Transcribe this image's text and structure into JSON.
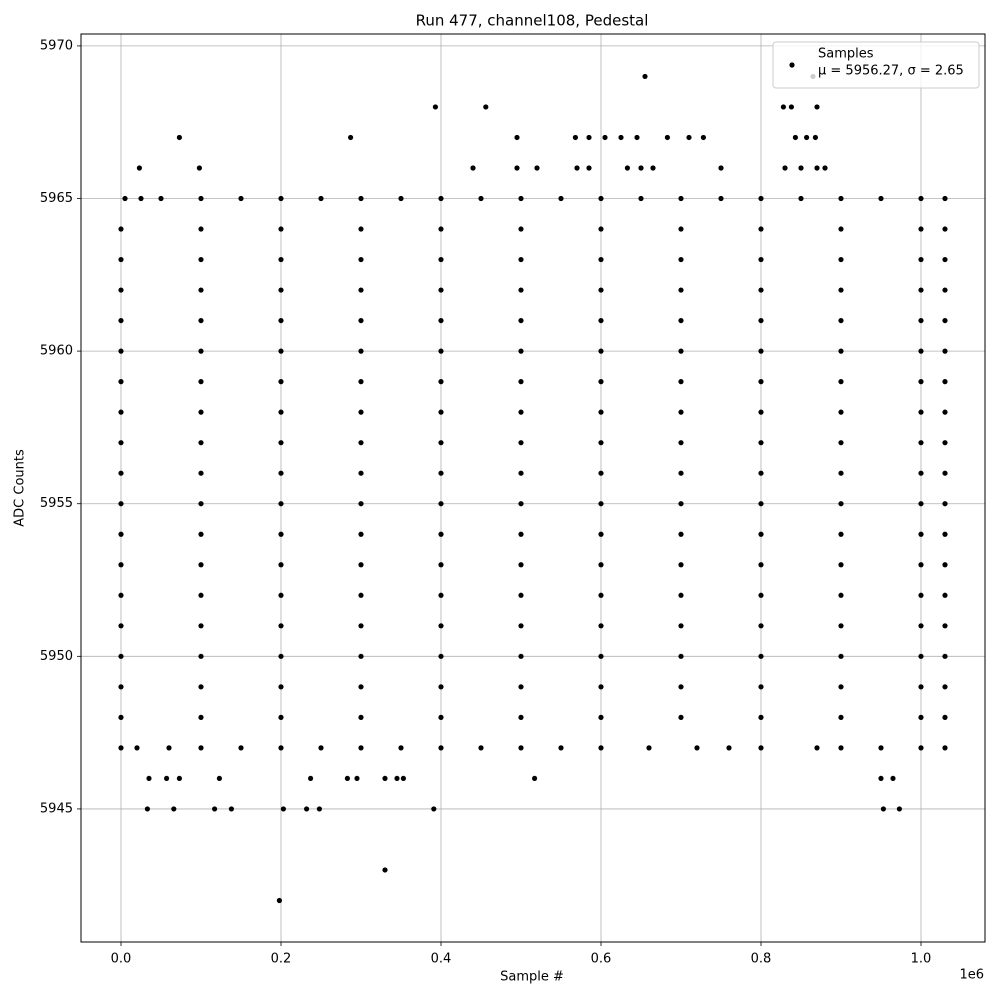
{
  "chart_data": {
    "type": "scatter",
    "title": "Run 477, channel108, Pedestal",
    "x_label": "Sample #",
    "y_label": "ADC Counts",
    "x_offset_label": "1e6",
    "xlim": [
      -50000,
      1080000
    ],
    "ylim": [
      5940.64,
      5970.39
    ],
    "xticks": [
      {
        "value": 0,
        "label": "0.0"
      },
      {
        "value": 200000,
        "label": "0.2"
      },
      {
        "value": 400000,
        "label": "0.4"
      },
      {
        "value": 600000,
        "label": "0.6"
      },
      {
        "value": 800000,
        "label": "0.8"
      },
      {
        "value": 1000000,
        "label": "1.0"
      }
    ],
    "yticks": [
      5945,
      5950,
      5955,
      5960,
      5965,
      5970
    ],
    "grid": true,
    "legend": "upper right",
    "legend_note": "μ = 5956.27, σ = 2.65",
    "series": [
      {
        "name": "Samples",
        "color": "#000000",
        "x": [
          0,
          100000,
          200000,
          300000,
          400000,
          500000,
          600000,
          700000,
          800000,
          900000,
          1000000,
          1030000,
          0,
          100000,
          200000,
          300000,
          400000,
          500000,
          600000,
          700000,
          800000,
          900000,
          1000000,
          1030000,
          0,
          100000,
          200000,
          300000,
          400000,
          500000,
          600000,
          700000,
          800000,
          900000,
          1000000,
          1030000,
          0,
          100000,
          200000,
          300000,
          400000,
          500000,
          600000,
          700000,
          800000,
          900000,
          1000000,
          1030000,
          0,
          100000,
          200000,
          300000,
          400000,
          500000,
          600000,
          700000,
          800000,
          900000,
          1000000,
          1030000,
          0,
          100000,
          200000,
          300000,
          400000,
          500000,
          600000,
          700000,
          800000,
          900000,
          1000000,
          1030000,
          0,
          100000,
          200000,
          300000,
          400000,
          500000,
          600000,
          700000,
          800000,
          900000,
          1000000,
          1030000,
          0,
          100000,
          200000,
          300000,
          400000,
          500000,
          600000,
          700000,
          800000,
          900000,
          1000000,
          1030000,
          0,
          100000,
          200000,
          300000,
          400000,
          500000,
          600000,
          700000,
          800000,
          900000,
          1000000,
          1030000,
          0,
          100000,
          200000,
          300000,
          400000,
          500000,
          600000,
          700000,
          800000,
          900000,
          1000000,
          1030000,
          0,
          100000,
          200000,
          300000,
          400000,
          500000,
          600000,
          700000,
          800000,
          900000,
          1000000,
          1030000,
          0,
          100000,
          200000,
          300000,
          400000,
          500000,
          600000,
          700000,
          800000,
          900000,
          1000000,
          1030000,
          0,
          100000,
          200000,
          300000,
          400000,
          500000,
          600000,
          700000,
          800000,
          900000,
          1000000,
          1030000,
          0,
          100000,
          200000,
          300000,
          400000,
          500000,
          600000,
          700000,
          800000,
          900000,
          1000000,
          1030000,
          0,
          100000,
          200000,
          300000,
          400000,
          500000,
          600000,
          700000,
          800000,
          900000,
          1000000,
          1030000,
          0,
          100000,
          200000,
          300000,
          400000,
          500000,
          600000,
          700000,
          800000,
          900000,
          1000000,
          1030000,
          0,
          100000,
          200000,
          300000,
          400000,
          500000,
          600000,
          700000,
          800000,
          900000,
          1000000,
          1030000,
          0,
          20000,
          60000,
          100000,
          150000,
          200000,
          250000,
          300000,
          350000,
          400000,
          450000,
          500000,
          550000,
          600000,
          660000,
          720000,
          760000,
          800000,
          870000,
          900000,
          950000,
          1000000,
          1030000,
          5000,
          25000,
          50000,
          100000,
          150000,
          200000,
          250000,
          300000,
          350000,
          400000,
          450000,
          500000,
          550000,
          600000,
          650000,
          700000,
          750000,
          800000,
          850000,
          900000,
          950000,
          1000000,
          1030000,
          23000,
          98000,
          440000,
          495000,
          520000,
          570000,
          585000,
          633000,
          650000,
          665000,
          750000,
          830000,
          850000,
          870000,
          880000,
          73000,
          287000,
          495000,
          568000,
          585000,
          605000,
          625000,
          645000,
          683000,
          710000,
          728000,
          843000,
          857000,
          868000,
          393000,
          456000,
          828000,
          838000,
          870000,
          655000,
          865000,
          35000,
          57000,
          73000,
          123000,
          237000,
          283000,
          295000,
          330000,
          345000,
          353000,
          517000,
          950000,
          965000,
          33000,
          66000,
          117000,
          138000,
          203000,
          232000,
          248000,
          391000,
          953000,
          973000,
          330000,
          198000
        ],
        "values": [
          5964,
          5964,
          5964,
          5964,
          5964,
          5964,
          5964,
          5964,
          5964,
          5964,
          5964,
          5964,
          5963,
          5963,
          5963,
          5963,
          5963,
          5963,
          5963,
          5963,
          5963,
          5963,
          5963,
          5963,
          5962,
          5962,
          5962,
          5962,
          5962,
          5962,
          5962,
          5962,
          5962,
          5962,
          5962,
          5962,
          5961,
          5961,
          5961,
          5961,
          5961,
          5961,
          5961,
          5961,
          5961,
          5961,
          5961,
          5961,
          5960,
          5960,
          5960,
          5960,
          5960,
          5960,
          5960,
          5960,
          5960,
          5960,
          5960,
          5960,
          5959,
          5959,
          5959,
          5959,
          5959,
          5959,
          5959,
          5959,
          5959,
          5959,
          5959,
          5959,
          5958,
          5958,
          5958,
          5958,
          5958,
          5958,
          5958,
          5958,
          5958,
          5958,
          5958,
          5958,
          5957,
          5957,
          5957,
          5957,
          5957,
          5957,
          5957,
          5957,
          5957,
          5957,
          5957,
          5957,
          5956,
          5956,
          5956,
          5956,
          5956,
          5956,
          5956,
          5956,
          5956,
          5956,
          5956,
          5956,
          5955,
          5955,
          5955,
          5955,
          5955,
          5955,
          5955,
          5955,
          5955,
          5955,
          5955,
          5955,
          5954,
          5954,
          5954,
          5954,
          5954,
          5954,
          5954,
          5954,
          5954,
          5954,
          5954,
          5954,
          5953,
          5953,
          5953,
          5953,
          5953,
          5953,
          5953,
          5953,
          5953,
          5953,
          5953,
          5953,
          5952,
          5952,
          5952,
          5952,
          5952,
          5952,
          5952,
          5952,
          5952,
          5952,
          5952,
          5952,
          5951,
          5951,
          5951,
          5951,
          5951,
          5951,
          5951,
          5951,
          5951,
          5951,
          5951,
          5951,
          5950,
          5950,
          5950,
          5950,
          5950,
          5950,
          5950,
          5950,
          5950,
          5950,
          5950,
          5950,
          5949,
          5949,
          5949,
          5949,
          5949,
          5949,
          5949,
          5949,
          5949,
          5949,
          5949,
          5949,
          5948,
          5948,
          5948,
          5948,
          5948,
          5948,
          5948,
          5948,
          5948,
          5948,
          5948,
          5948,
          5947,
          5947,
          5947,
          5947,
          5947,
          5947,
          5947,
          5947,
          5947,
          5947,
          5947,
          5947,
          5947,
          5947,
          5947,
          5947,
          5947,
          5947,
          5947,
          5947,
          5947,
          5947,
          5947,
          5965,
          5965,
          5965,
          5965,
          5965,
          5965,
          5965,
          5965,
          5965,
          5965,
          5965,
          5965,
          5965,
          5965,
          5965,
          5965,
          5965,
          5965,
          5965,
          5965,
          5965,
          5965,
          5965,
          5966,
          5966,
          5966,
          5966,
          5966,
          5966,
          5966,
          5966,
          5966,
          5966,
          5966,
          5966,
          5966,
          5966,
          5966,
          5967,
          5967,
          5967,
          5967,
          5967,
          5967,
          5967,
          5967,
          5967,
          5967,
          5967,
          5967,
          5967,
          5967,
          5968,
          5968,
          5968,
          5968,
          5968,
          5969,
          5969,
          5946,
          5946,
          5946,
          5946,
          5946,
          5946,
          5946,
          5946,
          5946,
          5946,
          5946,
          5946,
          5946,
          5945,
          5945,
          5945,
          5945,
          5945,
          5945,
          5945,
          5945,
          5945,
          5945,
          5943,
          5942
        ]
      }
    ]
  }
}
